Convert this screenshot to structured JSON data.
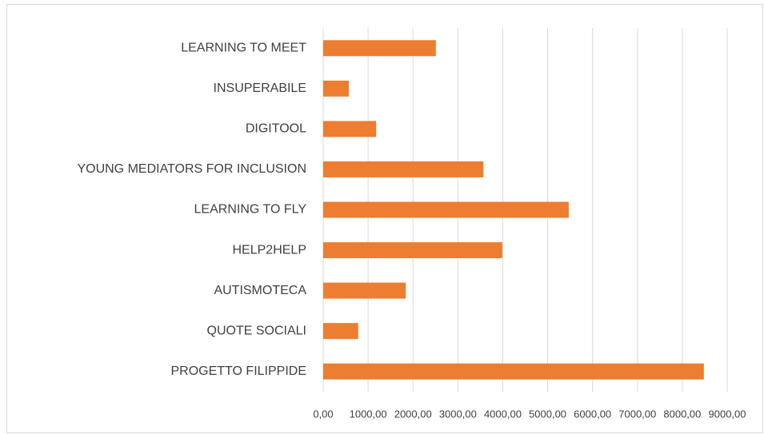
{
  "chart_data": {
    "type": "bar",
    "orientation": "horizontal",
    "categories": [
      "LEARNING TO MEET",
      "INSUPERABILE",
      "DIGITOOL",
      "YOUNG MEDIATORS FOR INCLUSION",
      "LEARNING TO FLY",
      "HELP2HELP",
      "AUTISMOTECA",
      "QUOTE SOCIALI",
      "PROGETTO FILIPPIDE"
    ],
    "values": [
      2510,
      570,
      1180,
      3570,
      5470,
      3990,
      1840,
      780,
      8480
    ],
    "color": "#ed7d31",
    "xlim": [
      0,
      9000
    ],
    "xticks": [
      {
        "value": 0,
        "label": "0,00"
      },
      {
        "value": 1000,
        "label": "1000,00"
      },
      {
        "value": 2000,
        "label": "2000,00"
      },
      {
        "value": 3000,
        "label": "3000,00"
      },
      {
        "value": 4000,
        "label": "4000,00"
      },
      {
        "value": 5000,
        "label": "5000,00"
      },
      {
        "value": 6000,
        "label": "6000,00"
      },
      {
        "value": 7000,
        "label": "7000,00"
      },
      {
        "value": 8000,
        "label": "8000,00"
      },
      {
        "value": 9000,
        "label": "9000,00"
      }
    ],
    "grid": true
  }
}
